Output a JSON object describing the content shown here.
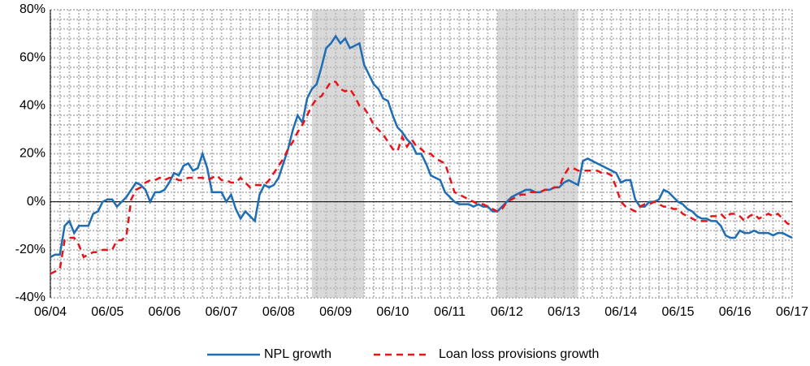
{
  "chart_data": {
    "type": "line",
    "categories": [
      "06/04",
      null,
      null,
      null,
      null,
      null,
      null,
      null,
      null,
      null,
      null,
      null,
      "06/05",
      null,
      null,
      null,
      null,
      null,
      null,
      null,
      null,
      null,
      null,
      null,
      "06/06",
      null,
      null,
      null,
      null,
      null,
      null,
      null,
      null,
      null,
      null,
      null,
      "06/07",
      null,
      null,
      null,
      null,
      null,
      null,
      null,
      null,
      null,
      null,
      null,
      "06/08",
      null,
      null,
      null,
      null,
      null,
      null,
      null,
      null,
      null,
      null,
      null,
      "06/09",
      null,
      null,
      null,
      null,
      null,
      null,
      null,
      null,
      null,
      null,
      null,
      "06/10",
      null,
      null,
      null,
      null,
      null,
      null,
      null,
      null,
      null,
      null,
      null,
      "06/11",
      null,
      null,
      null,
      null,
      null,
      null,
      null,
      null,
      null,
      null,
      null,
      "06/12",
      null,
      null,
      null,
      null,
      null,
      null,
      null,
      null,
      null,
      null,
      null,
      "06/13",
      null,
      null,
      null,
      null,
      null,
      null,
      null,
      null,
      null,
      null,
      null,
      "06/14",
      null,
      null,
      null,
      null,
      null,
      null,
      null,
      null,
      null,
      null,
      null,
      "06/15",
      null,
      null,
      null,
      null,
      null,
      null,
      null,
      null,
      null,
      null,
      null,
      "06/16",
      null,
      null,
      null,
      null,
      null,
      null,
      null,
      null,
      null,
      null,
      null,
      "06/17"
    ],
    "series": [
      {
        "name": "NPL growth",
        "color": "#1f6db3",
        "dash": false,
        "values": [
          -23,
          -22,
          -22,
          -10,
          -8,
          -13,
          -10,
          -10,
          -10,
          -5,
          -4,
          0,
          1,
          1,
          -2,
          0,
          2,
          5,
          8,
          7,
          5,
          0,
          4,
          4,
          5,
          8,
          12,
          11,
          15,
          16,
          13,
          14,
          20,
          14,
          4,
          4,
          4,
          0,
          3,
          -3,
          -7,
          -4,
          -6,
          -8,
          3,
          7,
          6,
          7,
          10,
          16,
          22,
          30,
          36,
          33,
          43,
          47,
          49,
          56,
          64,
          66,
          69,
          66,
          68,
          64,
          65,
          66,
          57,
          53,
          49,
          47,
          43,
          42,
          36,
          31,
          29,
          26,
          24,
          20,
          20,
          16,
          11,
          10,
          9,
          4,
          2,
          0,
          -1,
          -1,
          -1,
          -2,
          -1,
          -2,
          -2,
          -4,
          -4,
          -2,
          0,
          2,
          3,
          4,
          5,
          5,
          4,
          4,
          5,
          5,
          6,
          6,
          8,
          9,
          8,
          7,
          17,
          18,
          17,
          16,
          15,
          14,
          13,
          12,
          8,
          9,
          9,
          1,
          -2,
          -2,
          0,
          0,
          1,
          5,
          4,
          2,
          0,
          -1,
          -3,
          -4,
          -6,
          -7,
          -7,
          -8,
          -8,
          -10,
          -14,
          -15,
          -15,
          -12,
          -13,
          -13,
          -12,
          -13,
          -13,
          -13,
          -14,
          -13,
          -13,
          -14,
          -15
        ]
      },
      {
        "name": "Loan loss provisions growth",
        "color": "#e8141b",
        "dash": true,
        "values": [
          -30,
          -29,
          -28,
          -16,
          -15,
          -15,
          -18,
          -23,
          -22,
          -21,
          -21,
          -20,
          -20,
          -20,
          -16,
          -16,
          -14,
          1,
          5,
          6,
          8,
          9,
          9,
          10,
          9,
          10,
          10,
          9,
          9,
          10,
          10,
          10,
          10,
          9,
          10,
          11,
          9,
          9,
          8,
          8,
          10,
          8,
          6,
          7,
          7,
          7,
          9,
          12,
          15,
          18,
          22,
          25,
          29,
          32,
          36,
          40,
          43,
          44,
          47,
          50,
          50,
          47,
          46,
          47,
          44,
          40,
          39,
          36,
          32,
          30,
          28,
          25,
          22,
          21,
          27,
          23,
          26,
          23,
          22,
          20,
          20,
          18,
          17,
          16,
          10,
          4,
          3,
          2,
          1,
          0,
          -1,
          -1,
          -2,
          -3,
          -4,
          -3,
          0,
          1,
          2,
          3,
          3,
          4,
          4,
          4,
          5,
          5,
          6,
          6,
          11,
          14,
          14,
          13,
          13,
          13,
          13,
          13,
          12,
          12,
          11,
          6,
          0,
          -2,
          -3,
          -4,
          -2,
          -1,
          -1,
          0,
          -1,
          -2,
          -2,
          -3,
          -3,
          -5,
          -6,
          -7,
          -8,
          -8,
          -8,
          -6,
          -6,
          -5,
          -7,
          -5,
          -5,
          -6,
          -8,
          -6,
          -5,
          -7,
          -6,
          -5,
          -6,
          -5,
          -7,
          -9,
          -10
        ]
      }
    ],
    "ylim": [
      -40,
      80
    ],
    "yticks": [
      {
        "value": -40,
        "label": "-40%"
      },
      {
        "value": -20,
        "label": "-20%"
      },
      {
        "value": 0,
        "label": "0%"
      },
      {
        "value": 20,
        "label": "20%"
      },
      {
        "value": 40,
        "label": "40%"
      },
      {
        "value": 60,
        "label": "60%"
      },
      {
        "value": 80,
        "label": "80%"
      }
    ],
    "grid": true,
    "shaded_periods": [
      [
        55,
        66
      ],
      [
        94,
        111
      ]
    ],
    "shade_color": "#d9d9d9",
    "legend": "bottom"
  }
}
